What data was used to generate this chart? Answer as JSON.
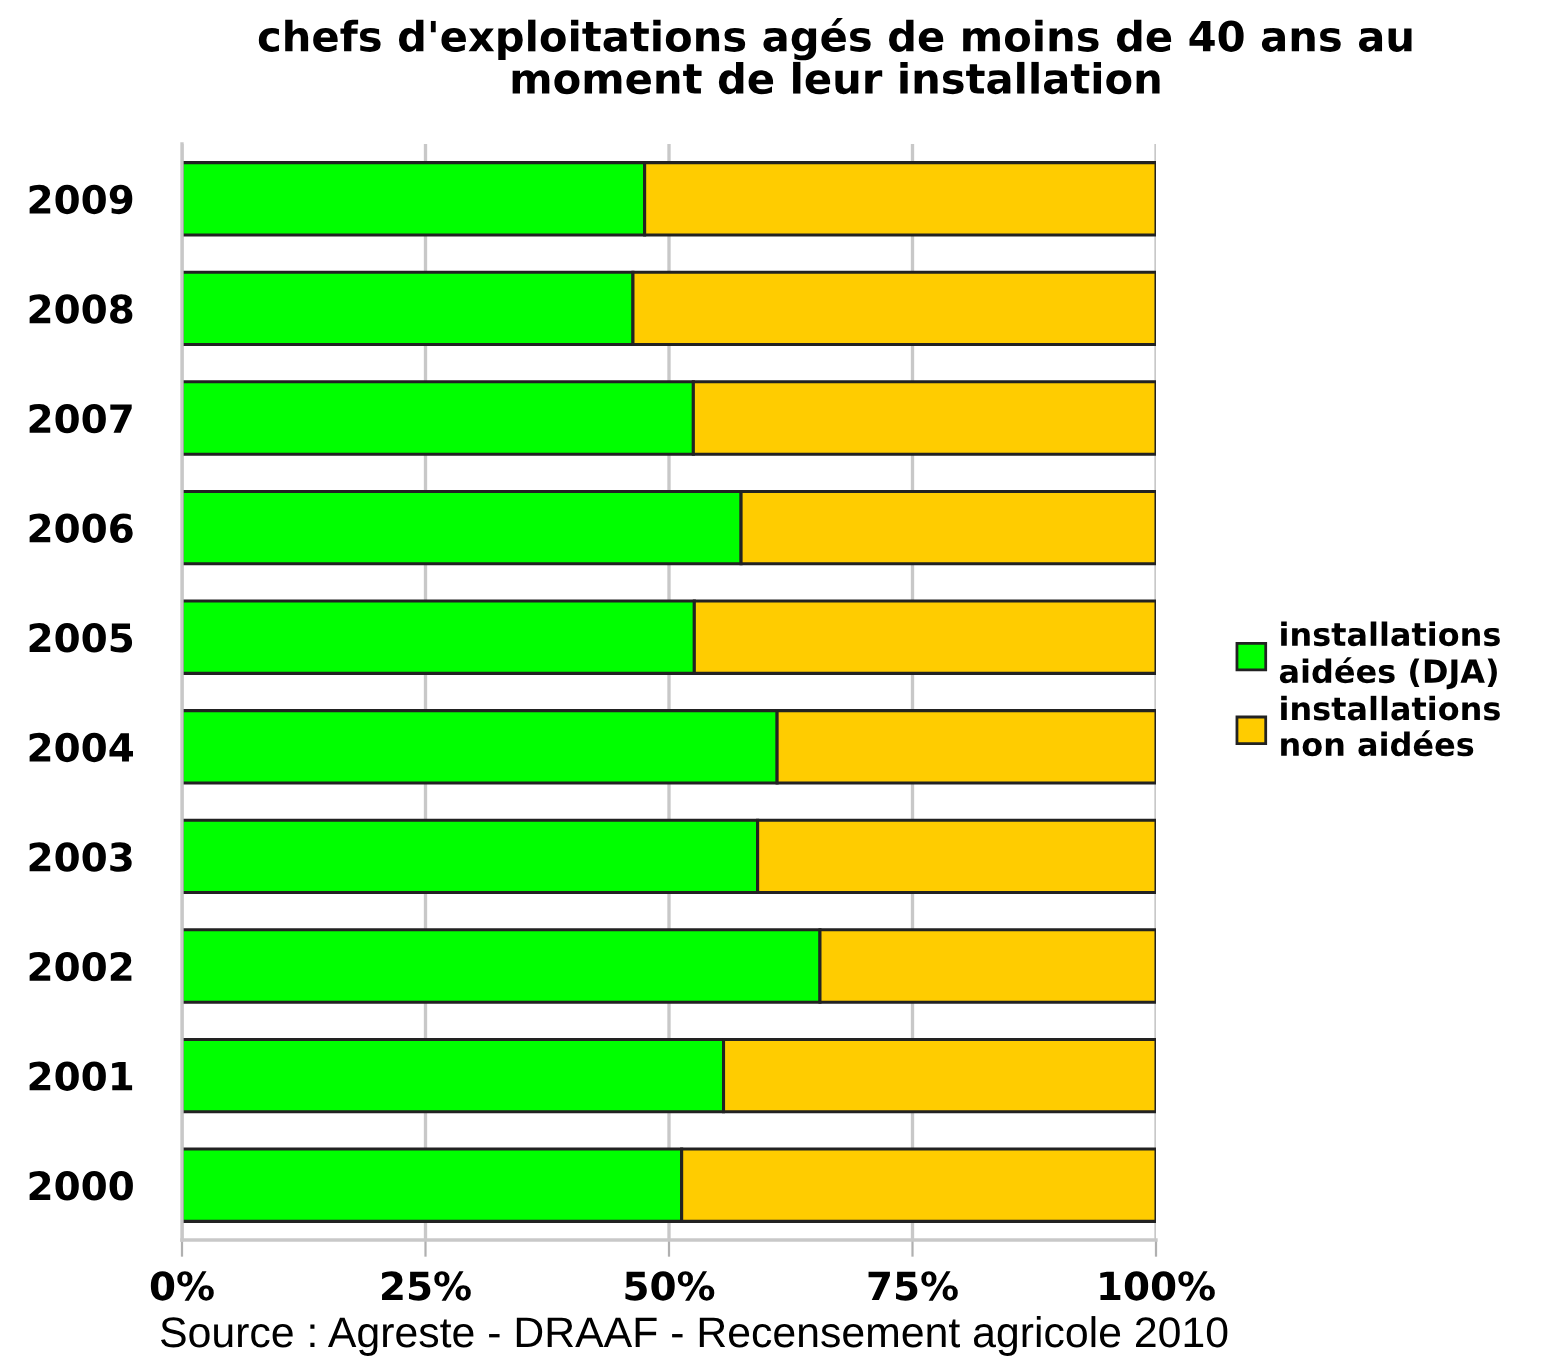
{
  "chart_data": {
    "type": "bar",
    "orientation": "horizontal",
    "stacked": true,
    "title": "chefs d'exploitations agés de moins de 40 ans au\nmoment de leur installation",
    "categories": [
      "2009",
      "2008",
      "2007",
      "2006",
      "2005",
      "2004",
      "2003",
      "2002",
      "2001",
      "2000"
    ],
    "series": [
      {
        "name": "installations\naidées (DJA)",
        "color": "#00ff00",
        "values": [
          47.5,
          46.3,
          52.5,
          57.4,
          52.6,
          61.1,
          59.1,
          65.5,
          55.6,
          51.3
        ]
      },
      {
        "name": "installations\nnon aidées",
        "color": "#ffcc00",
        "values": [
          52.5,
          53.7,
          47.5,
          42.6,
          47.4,
          38.9,
          40.9,
          34.5,
          44.4,
          48.7
        ]
      }
    ],
    "xlim": [
      0,
      100
    ],
    "xticks": [
      {
        "value": 0,
        "label": "0%"
      },
      {
        "value": 25,
        "label": "25%"
      },
      {
        "value": 50,
        "label": "50%"
      },
      {
        "value": 75,
        "label": "75%"
      },
      {
        "value": 100,
        "label": "100%"
      }
    ],
    "grid": "x",
    "legend": "right",
    "annotations": [
      "Source : Agreste - DRAAF - Recensement agricole 2010"
    ]
  }
}
